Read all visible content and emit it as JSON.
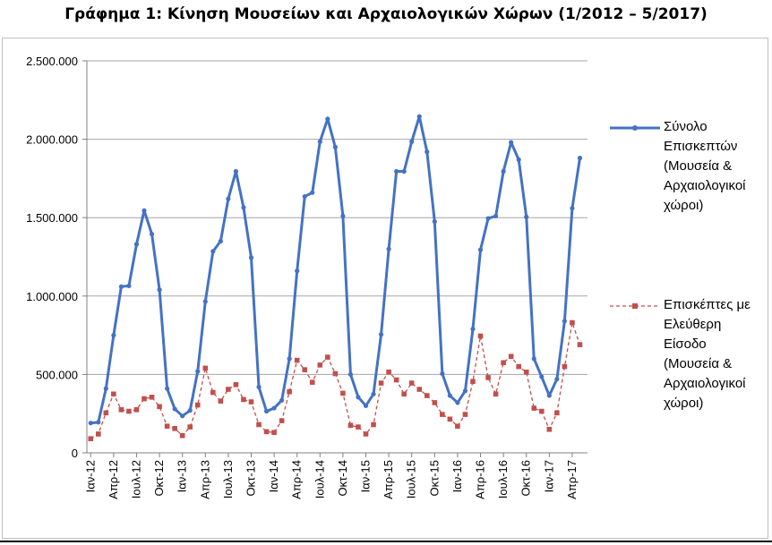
{
  "title": "Γράφημα 1: Κίνηση Μουσείων και Αρχαιολογικών Χώρων (1/2012 – 5/2017)",
  "chart_data": {
    "type": "line",
    "title": "Γράφημα 1: Κίνηση Μουσείων και Αρχαιολογικών Χώρων (1/2012 – 5/2017)",
    "ylim": [
      0,
      2500000
    ],
    "y_ticks": [
      "0",
      "500.000",
      "1.000.000",
      "1.500.000",
      "2.000.000",
      "2.500.000"
    ],
    "y_tick_values": [
      0,
      500000,
      1000000,
      1500000,
      2000000,
      2500000
    ],
    "x_tick_labels": [
      "Ιαν-12",
      "Απρ-12",
      "Ιουλ-12",
      "Οκτ-12",
      "Ιαν-13",
      "Απρ-13",
      "Ιουλ-13",
      "Οκτ-13",
      "Ιαν-14",
      "Απρ-14",
      "Ιουλ-14",
      "Οκτ-14",
      "Ιαν-15",
      "Απρ-15",
      "Ιουλ-15",
      "Οκτ-15",
      "Ιαν-16",
      "Απρ-16",
      "Ιουλ-16",
      "Οκτ-16",
      "Ιαν-17",
      "Απρ-17"
    ],
    "grid": "horizontal",
    "legend_position": "right",
    "series": [
      {
        "name": "Σύνολο Επισκεπτών (Μουσεία & Αρχαιολογικοί χώροι)",
        "color": "#4472c4",
        "style": "solid",
        "marker": "circle",
        "legend_lines": [
          "Σύνολο",
          "Επισκεπτών",
          "(Μουσεία &",
          "Αρχαιολογικοί",
          "χώροι)"
        ],
        "values": [
          190000,
          195000,
          410000,
          750000,
          1060000,
          1065000,
          1330000,
          1545000,
          1395000,
          1040000,
          410000,
          280000,
          235000,
          270000,
          520000,
          965000,
          1285000,
          1350000,
          1620000,
          1795000,
          1565000,
          1245000,
          420000,
          265000,
          285000,
          335000,
          600000,
          1160000,
          1635000,
          1660000,
          1985000,
          2130000,
          1950000,
          1510000,
          500000,
          355000,
          300000,
          375000,
          755000,
          1300000,
          1795000,
          1795000,
          1985000,
          2145000,
          1920000,
          1475000,
          505000,
          365000,
          320000,
          395000,
          790000,
          1295000,
          1495000,
          1510000,
          1795000,
          1980000,
          1870000,
          1505000,
          600000,
          485000,
          365000,
          470000,
          840000,
          1560000,
          1880000
        ]
      },
      {
        "name": "Επισκέπτες με Ελεύθερη Είσοδο (Μουσεία & Αρχαιολογικοί χώροι)",
        "color": "#c0504d",
        "style": "dashed",
        "marker": "square",
        "legend_lines": [
          "Επισκέπτες με",
          "Ελεύθερη",
          "Είσοδο",
          "(Μουσεία &",
          "Αρχαιολογικοί",
          "χώροι)"
        ],
        "values": [
          90000,
          120000,
          255000,
          375000,
          275000,
          265000,
          275000,
          345000,
          355000,
          295000,
          170000,
          155000,
          110000,
          165000,
          305000,
          540000,
          385000,
          330000,
          405000,
          435000,
          340000,
          325000,
          180000,
          135000,
          130000,
          205000,
          390000,
          590000,
          530000,
          450000,
          560000,
          610000,
          505000,
          380000,
          175000,
          165000,
          120000,
          180000,
          445000,
          515000,
          465000,
          375000,
          445000,
          405000,
          365000,
          320000,
          245000,
          215000,
          170000,
          245000,
          455000,
          745000,
          480000,
          375000,
          575000,
          615000,
          550000,
          515000,
          285000,
          265000,
          150000,
          255000,
          550000,
          830000,
          690000
        ]
      }
    ]
  }
}
